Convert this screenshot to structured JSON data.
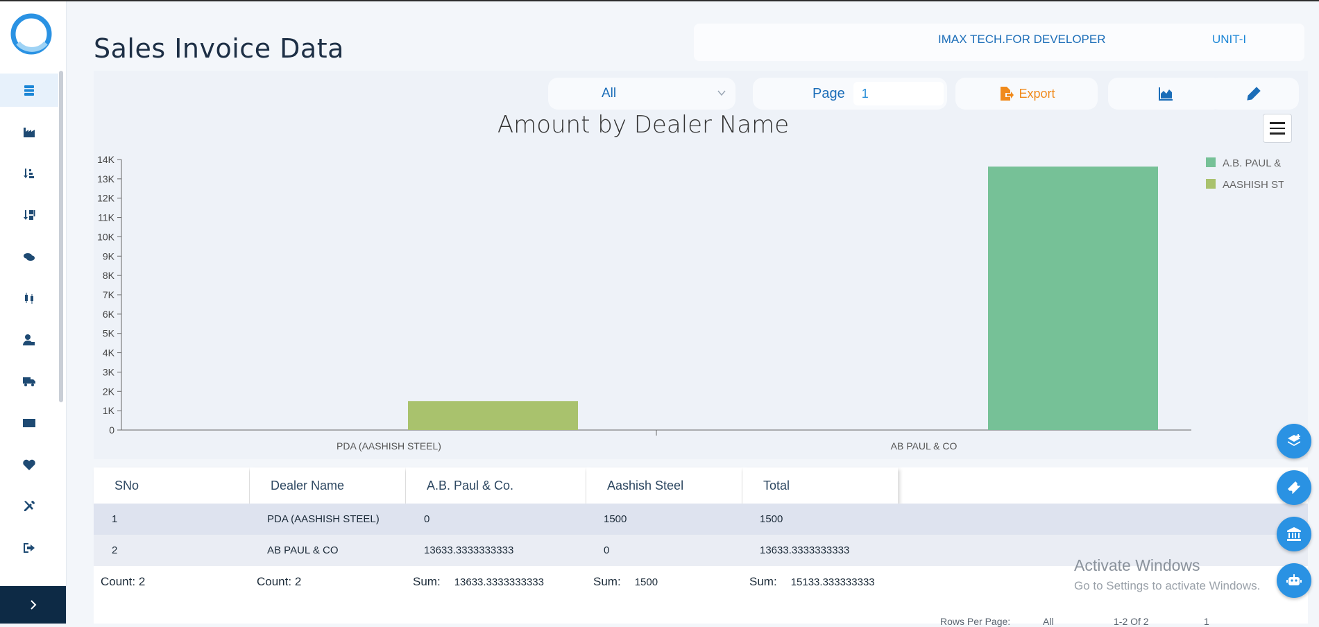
{
  "header": {
    "title": "Sales Invoice Data",
    "company": "IMAX TECH.FOR DEVELOPER",
    "unit": "UNIT-I"
  },
  "toolbar": {
    "filter_value": "All",
    "page_label": "Page",
    "page_value": "1",
    "export_label": "Export"
  },
  "sidebar": {
    "items": [
      {
        "icon": "server-icon",
        "active": true
      },
      {
        "icon": "factory-icon"
      },
      {
        "icon": "sort-amount-icon"
      },
      {
        "icon": "sort-exclamation-icon"
      },
      {
        "icon": "coins-icon"
      },
      {
        "icon": "candlestick-icon"
      },
      {
        "icon": "user-tag-icon"
      },
      {
        "icon": "truck-icon"
      },
      {
        "icon": "money-check-icon"
      },
      {
        "icon": "heart-icon"
      },
      {
        "icon": "tools-icon"
      },
      {
        "icon": "sign-out-icon"
      }
    ]
  },
  "chart_data": {
    "type": "bar",
    "title": "Amount by Dealer Name",
    "categories": [
      "PDA (AASHISH STEEL)",
      "AB PAUL & CO"
    ],
    "series": [
      {
        "name": "A.B. PAUL & CO.",
        "color": "#76c197",
        "values": [
          0,
          13633.33
        ]
      },
      {
        "name": "AASHISH STEEL",
        "color": "#a9c26d",
        "values": [
          1500,
          0
        ]
      }
    ],
    "y_ticks": [
      "0",
      "1K",
      "2K",
      "3K",
      "4K",
      "5K",
      "6K",
      "7K",
      "8K",
      "9K",
      "10K",
      "11K",
      "12K",
      "13K",
      "14K"
    ],
    "ylim": [
      0,
      14000
    ],
    "legend": "top-right"
  },
  "table": {
    "columns": [
      "SNo",
      "Dealer Name",
      "A.B. Paul & Co.",
      "Aashish Steel",
      "Total"
    ],
    "rows": [
      [
        "1",
        "PDA (AASHISH STEEL)",
        "0",
        "1500",
        "1500"
      ],
      [
        "2",
        "AB PAUL & CO",
        "13633.3333333333",
        "0",
        "13633.3333333333"
      ]
    ],
    "footer": {
      "count_label": "Count:",
      "count_sno": "2",
      "count_dealer": "2",
      "sum_label": "Sum:",
      "sum_ab": "13633.3333333333",
      "sum_aashish": "1500",
      "sum_total": "15133.333333333"
    }
  },
  "pager": {
    "rows_per_page_label": "Rows Per Page:",
    "rows_per_page_value": "All",
    "range": "1-2 Of 2",
    "page": "1"
  },
  "watermark": {
    "line1": "Activate Windows",
    "line2": "Go to Settings to activate Windows."
  }
}
